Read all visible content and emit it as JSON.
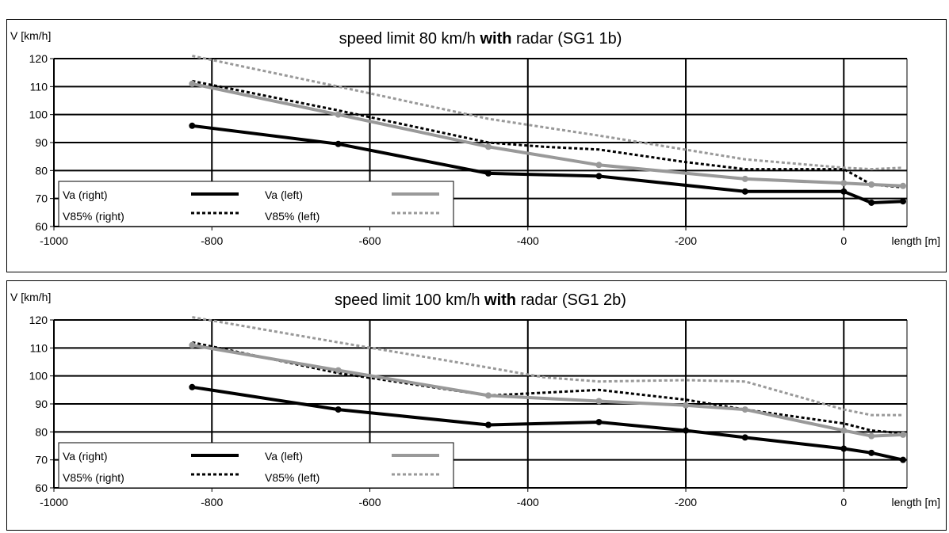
{
  "chart_data": [
    {
      "type": "line",
      "title_prefix": "speed limit 80 km/h ",
      "title_bold": "with",
      "title_suffix": " radar (SG1 1b)",
      "ylabel": "V [km/h]",
      "xlabel": "length [m]",
      "xlim": [
        -1000,
        80
      ],
      "ylim": [
        60,
        120
      ],
      "xticks": [
        -1000,
        -800,
        -600,
        -400,
        -200,
        0
      ],
      "yticks": [
        60,
        70,
        80,
        90,
        100,
        110,
        120
      ],
      "grid": true,
      "legend_position": "bottom-left",
      "series": [
        {
          "name": "Va (right)",
          "color": "#000000",
          "style": "solid",
          "x": [
            -825,
            -640,
            -450,
            -310,
            -125,
            0,
            35,
            75
          ],
          "y": [
            96,
            89.5,
            79,
            78,
            72.5,
            72.5,
            68.5,
            69
          ]
        },
        {
          "name": "Va (left)",
          "color": "#999999",
          "style": "solid",
          "x": [
            -825,
            -640,
            -450,
            -310,
            -125,
            0,
            35,
            75
          ],
          "y": [
            111,
            100,
            88.5,
            82,
            77,
            75.5,
            75,
            74.5
          ]
        },
        {
          "name": "V85% (right)",
          "color": "#000000",
          "style": "dotted",
          "x": [
            -825,
            -640,
            -450,
            -380,
            -310,
            -200,
            -125,
            0,
            35,
            75
          ],
          "y": [
            112,
            101.5,
            90,
            88.5,
            87.5,
            83,
            80.5,
            80.5,
            75,
            74
          ]
        },
        {
          "name": "V85% (left)",
          "color": "#999999",
          "style": "dotted",
          "x": [
            -825,
            -640,
            -450,
            -310,
            -125,
            0,
            35,
            75
          ],
          "y": [
            121,
            110,
            98.5,
            92.5,
            84,
            81,
            80.5,
            81
          ]
        }
      ]
    },
    {
      "type": "line",
      "title_prefix": "speed limit 100 km/h ",
      "title_bold": "with",
      "title_suffix": " radar (SG1 2b)",
      "ylabel": "V [km/h]",
      "xlabel": "length [m]",
      "xlim": [
        -1000,
        80
      ],
      "ylim": [
        60,
        120
      ],
      "xticks": [
        -1000,
        -800,
        -600,
        -400,
        -200,
        0
      ],
      "yticks": [
        60,
        70,
        80,
        90,
        100,
        110,
        120
      ],
      "grid": true,
      "legend_position": "bottom-left",
      "series": [
        {
          "name": "Va (right)",
          "color": "#000000",
          "style": "solid",
          "x": [
            -825,
            -640,
            -450,
            -310,
            -200,
            -125,
            0,
            35,
            75
          ],
          "y": [
            96,
            88,
            82.5,
            83.5,
            80.5,
            78,
            74,
            72.5,
            70
          ]
        },
        {
          "name": "Va (left)",
          "color": "#999999",
          "style": "solid",
          "x": [
            -825,
            -640,
            -450,
            -310,
            -200,
            -125,
            0,
            35,
            75
          ],
          "y": [
            111,
            102,
            93,
            91,
            89.5,
            88,
            80.5,
            78.5,
            79
          ]
        },
        {
          "name": "V85% (right)",
          "color": "#000000",
          "style": "dotted",
          "x": [
            -825,
            -640,
            -450,
            -310,
            -200,
            -125,
            0,
            35,
            75
          ],
          "y": [
            112,
            101,
            93,
            95,
            91.5,
            88,
            83,
            80.5,
            79.5
          ]
        },
        {
          "name": "V85% (left)",
          "color": "#999999",
          "style": "dotted",
          "x": [
            -825,
            -640,
            -450,
            -380,
            -310,
            -200,
            -125,
            0,
            35,
            75
          ],
          "y": [
            121,
            112,
            103,
            99.5,
            98,
            98.5,
            98,
            88,
            86,
            86
          ]
        }
      ]
    }
  ]
}
